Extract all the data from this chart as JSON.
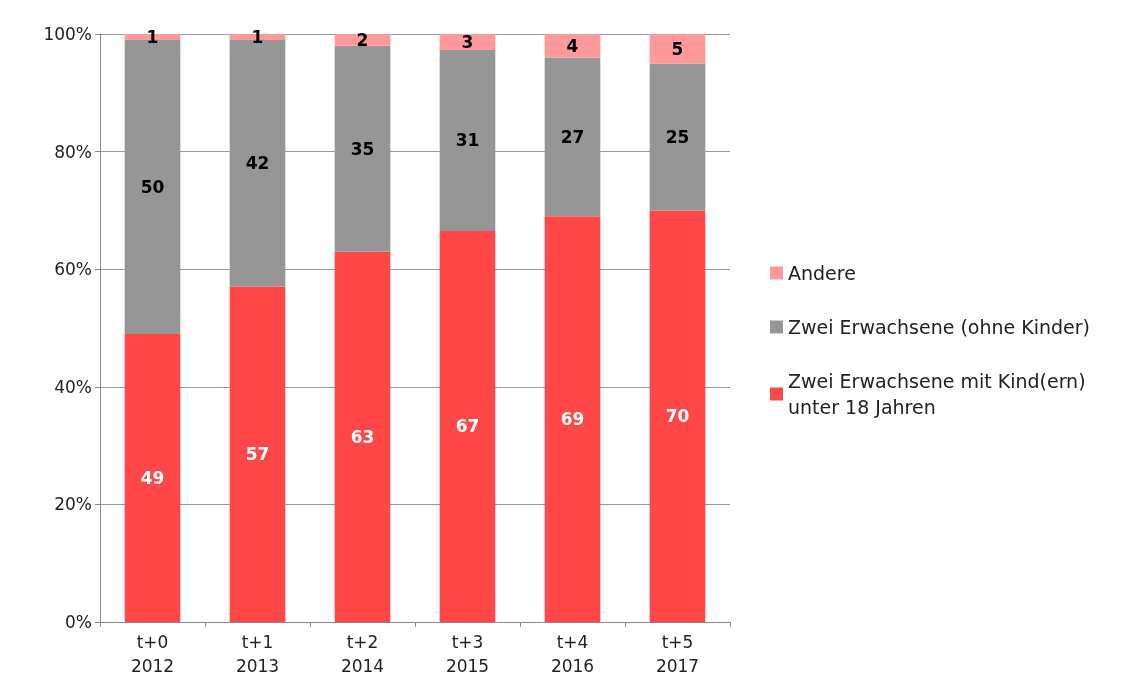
{
  "chart_data": {
    "type": "bar",
    "stacked": true,
    "categories": [
      "t+0\n2012",
      "t+1\n2013",
      "t+2\n2014",
      "t+3\n2015",
      "t+4\n2016",
      "t+5\n2017"
    ],
    "series": [
      {
        "name": "Zwei Erwachsene mit Kind(ern) unter 18 Jahren",
        "color": "#ff4747",
        "values": [
          49,
          57,
          63,
          66.5,
          69,
          70
        ],
        "value_labels": [
          "49",
          "57",
          "63",
          "67",
          "69",
          "70"
        ]
      },
      {
        "name": "Zwei Erwachsene (ohne Kinder)",
        "color": "#969696",
        "values": [
          50,
          42,
          35,
          30.8,
          27,
          25
        ],
        "value_labels": [
          "50",
          "42",
          "35",
          "31",
          "27",
          "25"
        ]
      },
      {
        "name": "Andere",
        "color": "#ff9999",
        "values": [
          1,
          1,
          2,
          2.7,
          4,
          5
        ],
        "value_labels": [
          "1",
          "1",
          "2",
          "3",
          "4",
          "5"
        ]
      }
    ],
    "ylim": [
      0,
      100
    ],
    "yticks": [
      {
        "value": 0,
        "label": "0%"
      },
      {
        "value": 20,
        "label": "20%"
      },
      {
        "value": 40,
        "label": "40%"
      },
      {
        "value": 60,
        "label": "60%"
      },
      {
        "value": 80,
        "label": "80%"
      },
      {
        "value": 100,
        "label": "100%"
      }
    ],
    "grid": "y",
    "legend": "right"
  }
}
